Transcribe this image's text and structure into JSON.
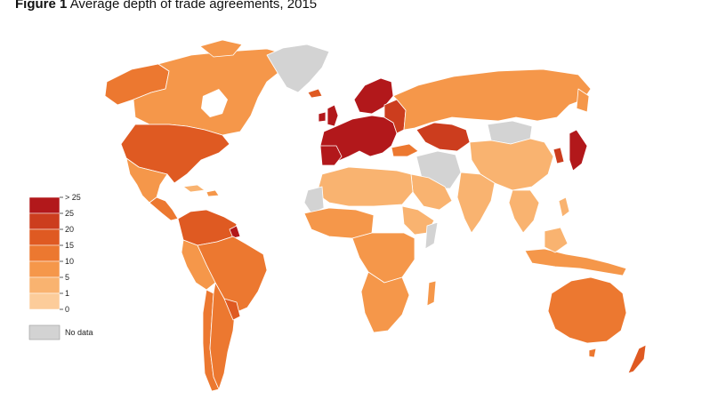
{
  "figure": {
    "label": "Figure 1",
    "title": "Average depth of trade agreements, 2015"
  },
  "legend": {
    "bins": [
      {
        "label": "> 25",
        "color": "#b2181b"
      },
      {
        "label": "25",
        "color": "#cc3d1e"
      },
      {
        "label": "20",
        "color": "#df5a22"
      },
      {
        "label": "15",
        "color": "#ec7830"
      },
      {
        "label": "10",
        "color": "#f5974a"
      },
      {
        "label": "5",
        "color": "#f9b370"
      },
      {
        "label": "1",
        "color": "#fccc9a"
      },
      {
        "label": "0",
        "color": "#fde3c6"
      }
    ],
    "no_data": {
      "label": "No data",
      "color": "#d3d3d3"
    }
  }
}
